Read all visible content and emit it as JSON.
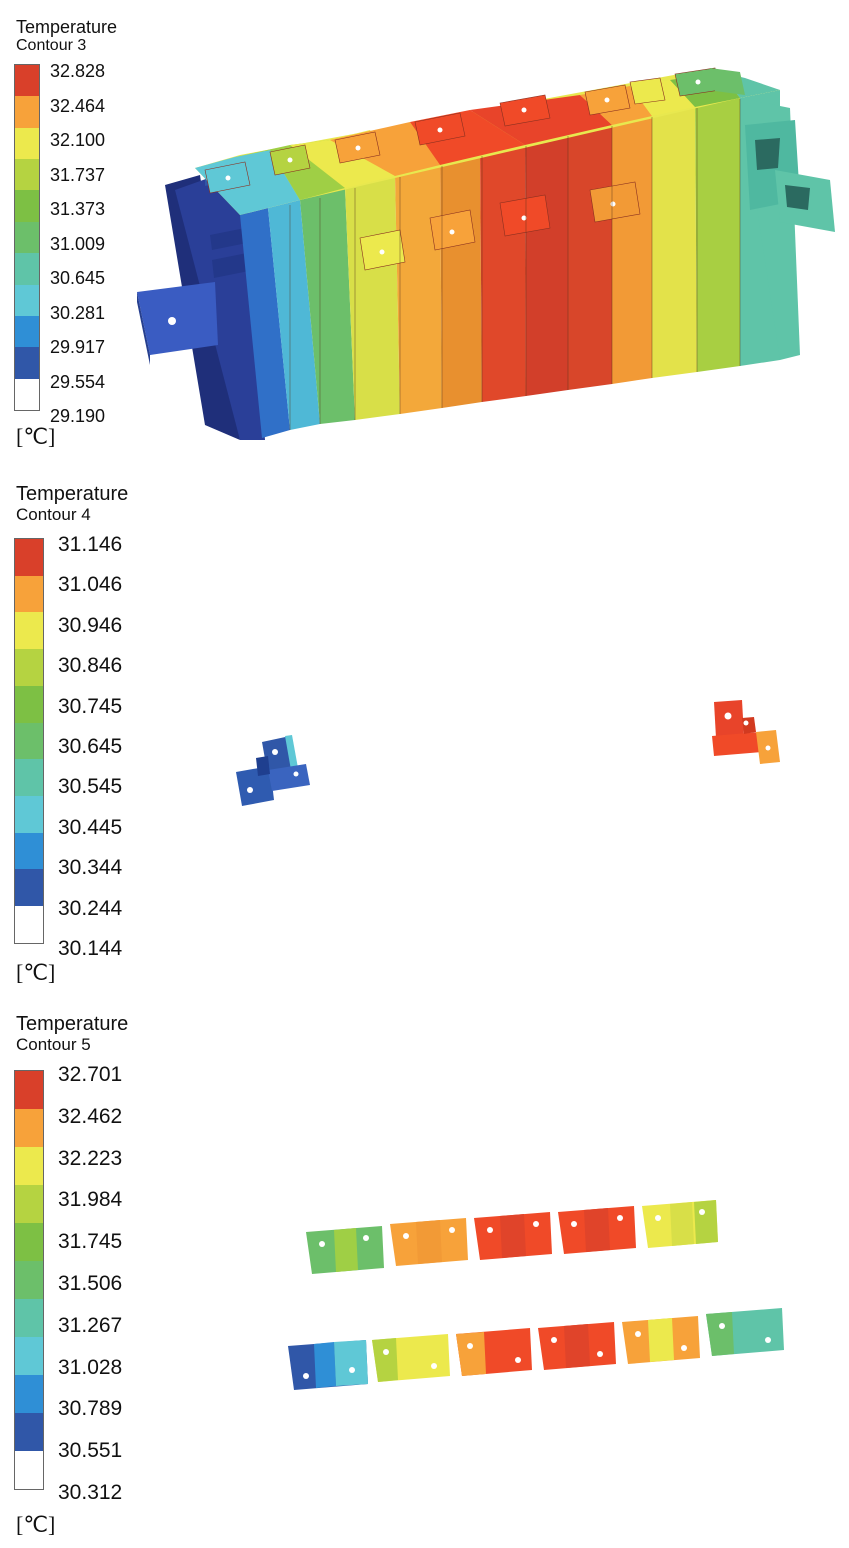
{
  "colormap": [
    "#3057a8",
    "#2f8fd6",
    "#5fc8d6",
    "#5fc4a8",
    "#6cbf6a",
    "#7dc044",
    "#b5d341",
    "#ece94d",
    "#f7a23a",
    "#f04a28",
    "#d9402a"
  ],
  "legends": [
    {
      "title": "Temperature",
      "subtitle": "Contour 3",
      "unit": "[℃]",
      "ticks": [
        "32.828",
        "32.464",
        "32.100",
        "31.737",
        "31.373",
        "31.009",
        "30.645",
        "30.281",
        "29.917",
        "29.554",
        "29.190"
      ]
    },
    {
      "title": "Temperature",
      "subtitle": "Contour 4",
      "unit": "[℃]",
      "ticks": [
        "31.146",
        "31.046",
        "30.946",
        "30.846",
        "30.745",
        "30.645",
        "30.545",
        "30.445",
        "30.344",
        "30.244",
        "30.144"
      ]
    },
    {
      "title": "Temperature",
      "subtitle": "Contour 5",
      "unit": "[℃]",
      "ticks": [
        "32.701",
        "32.462",
        "32.223",
        "31.984",
        "31.745",
        "31.506",
        "31.267",
        "31.028",
        "30.789",
        "30.551",
        "30.312"
      ]
    }
  ]
}
